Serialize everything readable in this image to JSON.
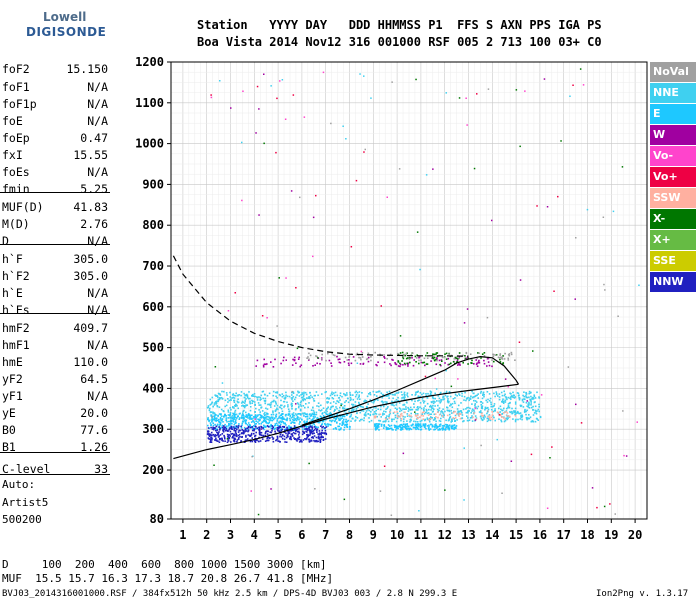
{
  "logo": {
    "line1": "Lowell",
    "line2": "DIGISONDE"
  },
  "header": {
    "line1": "Station   YYYY DAY   DDD HHMMSS P1  FFS S AXN PPS IGA PS",
    "line2": "Boa Vista 2014 Nov12 316 001000 RSF 005 2 713 100 03+ C0"
  },
  "params": [
    {
      "k": "foF2",
      "v": "15.150"
    },
    {
      "k": "foF1",
      "v": "N/A"
    },
    {
      "k": "foF1p",
      "v": "N/A"
    },
    {
      "k": "foE",
      "v": "N/A"
    },
    {
      "k": "foEp",
      "v": "0.47"
    },
    {
      "k": "fxI",
      "v": "15.55"
    },
    {
      "k": "foEs",
      "v": "N/A"
    },
    {
      "k": "fmin",
      "v": "5.25"
    },
    {
      "k": "MUF(D)",
      "v": "41.83"
    },
    {
      "k": "M(D)",
      "v": "2.76"
    },
    {
      "k": "D",
      "v": "N/A"
    },
    {
      "k": "h`F",
      "v": "305.0"
    },
    {
      "k": "h`F2",
      "v": "305.0"
    },
    {
      "k": "h`E",
      "v": "N/A"
    },
    {
      "k": "h`Es",
      "v": "N/A"
    },
    {
      "k": "hmF2",
      "v": "409.7"
    },
    {
      "k": "hmF1",
      "v": "N/A"
    },
    {
      "k": "hmE",
      "v": "110.0"
    },
    {
      "k": "yF2",
      "v": "64.5"
    },
    {
      "k": "yF1",
      "v": "N/A"
    },
    {
      "k": "yE",
      "v": "20.0"
    },
    {
      "k": "B0",
      "v": "77.6"
    },
    {
      "k": "B1",
      "v": "1.26"
    },
    {
      "k": "C-level",
      "v": "33"
    }
  ],
  "auto": {
    "line1": "Auto:",
    "line2": "Artist5",
    "line3": "500200"
  },
  "legend": [
    {
      "label": "NoVal",
      "color": "#a0a0a0"
    },
    {
      "label": "NNE",
      "color": "#3fd0f0"
    },
    {
      "label": "E",
      "color": "#1ec8ff"
    },
    {
      "label": "W",
      "color": "#a000a0"
    },
    {
      "label": "Vo-",
      "color": "#ff44cc"
    },
    {
      "label": "Vo+",
      "color": "#ee0044"
    },
    {
      "label": "SSW",
      "color": "#ffb0a0"
    },
    {
      "label": "X-",
      "color": "#007700"
    },
    {
      "label": "X+",
      "color": "#66bb44"
    },
    {
      "label": "SSE",
      "color": "#cccc00"
    },
    {
      "label": "NNW",
      "color": "#2020c0"
    }
  ],
  "footer": {
    "d_row": "D     100  200  400  600  800 1000 1500 3000 [km]",
    "muf_row": "MUF  15.5 15.7 16.3 17.3 18.7 20.8 26.7 41.8 [MHz]",
    "file_row": "BVJ03_2014316001000.RSF / 384fx512h 50 kHz 2.5 km / DPS-4D BVJ03 003 / 2.8 N 299.3 E",
    "version": "Ion2Png v. 1.3.17"
  },
  "chart_data": {
    "type": "scatter",
    "x_ticks": [
      1,
      2,
      3,
      4,
      5,
      6,
      7,
      8,
      9,
      10,
      11,
      12,
      13,
      14,
      15,
      16,
      17,
      18,
      19,
      20
    ],
    "y_ticks": [
      80,
      200,
      300,
      400,
      500,
      600,
      700,
      800,
      900,
      1000,
      1100,
      1200
    ],
    "xlim": [
      0.5,
      20.5
    ],
    "ylim": [
      80,
      1200
    ],
    "grid": true,
    "clusters": [
      {
        "name": "NNE",
        "x_range": [
          2,
          16
        ],
        "h_range": [
          320,
          395
        ],
        "count": 1400
      },
      {
        "name": "E",
        "x_range": [
          2,
          8
        ],
        "h_range": [
          300,
          340
        ],
        "count": 500
      },
      {
        "name": "NNW",
        "x_range": [
          2,
          7
        ],
        "h_range": [
          270,
          310
        ],
        "count": 500
      },
      {
        "name": "E",
        "x_range": [
          9,
          12.5
        ],
        "h_range": [
          300,
          315
        ],
        "count": 200
      },
      {
        "name": "W",
        "x_range": [
          4,
          14
        ],
        "h_range": [
          455,
          480
        ],
        "count": 120
      },
      {
        "name": "X-",
        "x_range": [
          10,
          14.5
        ],
        "h_range": [
          460,
          490
        ],
        "count": 80
      },
      {
        "name": "SSW",
        "x_range": [
          9,
          15
        ],
        "h_range": [
          325,
          345
        ],
        "count": 80
      },
      {
        "name": "NoVal",
        "x_range": [
          6,
          15
        ],
        "h_range": [
          470,
          490
        ],
        "count": 100
      }
    ],
    "traces": [
      {
        "style": "solid",
        "x": [
          0.6,
          2,
          3,
          4,
          5,
          6,
          7,
          8,
          9,
          10,
          11,
          12,
          13,
          14,
          15.1
        ],
        "y": [
          228,
          250,
          262,
          275,
          290,
          308,
          325,
          340,
          355,
          367,
          378,
          387,
          395,
          402,
          410
        ]
      },
      {
        "style": "solid",
        "x": [
          6,
          7,
          8,
          9,
          10,
          11,
          12,
          12.5,
          13,
          13.5,
          14,
          14.5,
          15,
          15.1
        ],
        "y": [
          310,
          330,
          350,
          372,
          395,
          420,
          445,
          462,
          472,
          478,
          475,
          455,
          420,
          410
        ]
      },
      {
        "style": "dashed",
        "x": [
          0.6,
          1,
          2,
          3,
          4,
          5,
          6,
          7,
          8,
          9,
          10,
          11,
          12,
          13
        ],
        "y": [
          725,
          680,
          610,
          565,
          535,
          515,
          500,
          490,
          484,
          482,
          481,
          480,
          480,
          479
        ]
      }
    ]
  }
}
